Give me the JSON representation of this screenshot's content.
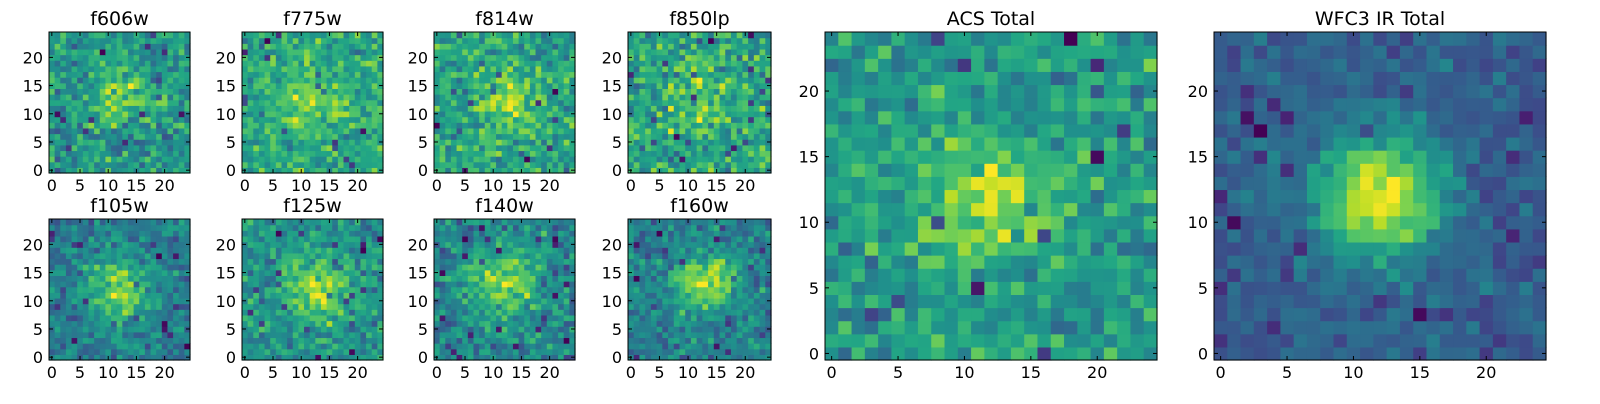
{
  "chart_data": [
    {
      "type": "heatmap",
      "title": "f606w",
      "grid_size": [
        25,
        25
      ],
      "xlim": [
        0,
        24
      ],
      "ylim": [
        0,
        24
      ],
      "xticks": [
        0,
        5,
        10,
        15,
        20
      ],
      "yticks": [
        0,
        5,
        10,
        15,
        20
      ],
      "xtick_labels": [
        "0",
        "5",
        "10",
        "15",
        "20"
      ],
      "ytick_labels": [
        "0",
        "5",
        "10",
        "15",
        "20"
      ],
      "origin": "lower",
      "colormap": "viridis",
      "noise_level": 0.6,
      "blob": {
        "x": 12,
        "y": 13,
        "sigma": 3.5,
        "amplitude": 0.35
      }
    },
    {
      "type": "heatmap",
      "title": "f775w",
      "grid_size": [
        25,
        25
      ],
      "xlim": [
        0,
        24
      ],
      "ylim": [
        0,
        24
      ],
      "xticks": [
        0,
        5,
        10,
        15,
        20
      ],
      "yticks": [
        0,
        5,
        10,
        15,
        20
      ],
      "xtick_labels": [
        "0",
        "5",
        "10",
        "15",
        "20"
      ],
      "ytick_labels": [
        "0",
        "5",
        "10",
        "15",
        "20"
      ],
      "origin": "lower",
      "colormap": "viridis",
      "noise_level": 0.6,
      "blob": {
        "x": 12,
        "y": 12,
        "sigma": 3.5,
        "amplitude": 0.4
      }
    },
    {
      "type": "heatmap",
      "title": "f814w",
      "grid_size": [
        25,
        25
      ],
      "xlim": [
        0,
        24
      ],
      "ylim": [
        0,
        24
      ],
      "xticks": [
        0,
        5,
        10,
        15,
        20
      ],
      "yticks": [
        0,
        5,
        10,
        15,
        20
      ],
      "xtick_labels": [
        "0",
        "5",
        "10",
        "15",
        "20"
      ],
      "ytick_labels": [
        "0",
        "5",
        "10",
        "15",
        "20"
      ],
      "origin": "lower",
      "colormap": "viridis",
      "noise_level": 0.65,
      "blob": {
        "x": 13,
        "y": 12,
        "sigma": 3.5,
        "amplitude": 0.4
      }
    },
    {
      "type": "heatmap",
      "title": "f850lp",
      "grid_size": [
        25,
        25
      ],
      "xlim": [
        0,
        24
      ],
      "ylim": [
        0,
        24
      ],
      "xticks": [
        0,
        5,
        10,
        15,
        20
      ],
      "yticks": [
        0,
        5,
        10,
        15,
        20
      ],
      "xtick_labels": [
        "0",
        "5",
        "10",
        "15",
        "20"
      ],
      "ytick_labels": [
        "0",
        "5",
        "10",
        "15",
        "20"
      ],
      "origin": "lower",
      "colormap": "viridis",
      "noise_level": 0.7,
      "blob": {
        "x": 12,
        "y": 12,
        "sigma": 3.5,
        "amplitude": 0.3
      }
    },
    {
      "type": "heatmap",
      "title": "f105w",
      "grid_size": [
        25,
        25
      ],
      "xlim": [
        0,
        24
      ],
      "ylim": [
        0,
        24
      ],
      "xticks": [
        0,
        5,
        10,
        15,
        20
      ],
      "yticks": [
        0,
        5,
        10,
        15,
        20
      ],
      "xtick_labels": [
        "0",
        "5",
        "10",
        "15",
        "20"
      ],
      "ytick_labels": [
        "0",
        "5",
        "10",
        "15",
        "20"
      ],
      "origin": "lower",
      "colormap": "viridis",
      "noise_level": 0.45,
      "blob": {
        "x": 12,
        "y": 12,
        "sigma": 4,
        "amplitude": 0.55
      }
    },
    {
      "type": "heatmap",
      "title": "f125w",
      "grid_size": [
        25,
        25
      ],
      "xlim": [
        0,
        24
      ],
      "ylim": [
        0,
        24
      ],
      "xticks": [
        0,
        5,
        10,
        15,
        20
      ],
      "yticks": [
        0,
        5,
        10,
        15,
        20
      ],
      "xtick_labels": [
        "0",
        "5",
        "10",
        "15",
        "20"
      ],
      "ytick_labels": [
        "0",
        "5",
        "10",
        "15",
        "20"
      ],
      "origin": "lower",
      "colormap": "viridis",
      "noise_level": 0.5,
      "blob": {
        "x": 13,
        "y": 12,
        "sigma": 4,
        "amplitude": 0.5
      }
    },
    {
      "type": "heatmap",
      "title": "f140w",
      "grid_size": [
        25,
        25
      ],
      "xlim": [
        0,
        24
      ],
      "ylim": [
        0,
        24
      ],
      "xticks": [
        0,
        5,
        10,
        15,
        20
      ],
      "yticks": [
        0,
        5,
        10,
        15,
        20
      ],
      "xtick_labels": [
        "0",
        "5",
        "10",
        "15",
        "20"
      ],
      "ytick_labels": [
        "0",
        "5",
        "10",
        "15",
        "20"
      ],
      "origin": "lower",
      "colormap": "viridis",
      "noise_level": 0.5,
      "blob": {
        "x": 12,
        "y": 13,
        "sigma": 4,
        "amplitude": 0.5
      }
    },
    {
      "type": "heatmap",
      "title": "f160w",
      "grid_size": [
        25,
        25
      ],
      "xlim": [
        0,
        24
      ],
      "ylim": [
        0,
        24
      ],
      "xticks": [
        0,
        5,
        10,
        15,
        20
      ],
      "yticks": [
        0,
        5,
        10,
        15,
        20
      ],
      "xtick_labels": [
        "0",
        "5",
        "10",
        "15",
        "20"
      ],
      "ytick_labels": [
        "0",
        "5",
        "10",
        "15",
        "20"
      ],
      "origin": "lower",
      "colormap": "viridis",
      "noise_level": 0.45,
      "blob": {
        "x": 13,
        "y": 13,
        "sigma": 3.5,
        "amplitude": 0.6
      }
    },
    {
      "type": "heatmap",
      "title": "ACS Total",
      "grid_size": [
        25,
        25
      ],
      "xlim": [
        0,
        24
      ],
      "ylim": [
        0,
        24
      ],
      "xticks": [
        0,
        5,
        10,
        15,
        20
      ],
      "yticks": [
        0,
        5,
        10,
        15,
        20
      ],
      "xtick_labels": [
        "0",
        "5",
        "10",
        "15",
        "20"
      ],
      "ytick_labels": [
        "0",
        "5",
        "10",
        "15",
        "20"
      ],
      "origin": "lower",
      "colormap": "viridis",
      "noise_level": 0.5,
      "blob": {
        "x": 12,
        "y": 12,
        "sigma": 3,
        "amplitude": 0.45
      }
    },
    {
      "type": "heatmap",
      "title": "WFC3 IR Total",
      "grid_size": [
        25,
        25
      ],
      "xlim": [
        0,
        24
      ],
      "ylim": [
        0,
        24
      ],
      "xticks": [
        0,
        5,
        10,
        15,
        20
      ],
      "yticks": [
        0,
        5,
        10,
        15,
        20
      ],
      "xtick_labels": [
        "0",
        "5",
        "10",
        "15",
        "20"
      ],
      "ytick_labels": [
        "0",
        "5",
        "10",
        "15",
        "20"
      ],
      "origin": "lower",
      "colormap": "viridis",
      "noise_level": 0.22,
      "blob": {
        "x": 12,
        "y": 12,
        "sigma": 3.2,
        "amplitude": 0.7
      }
    }
  ]
}
